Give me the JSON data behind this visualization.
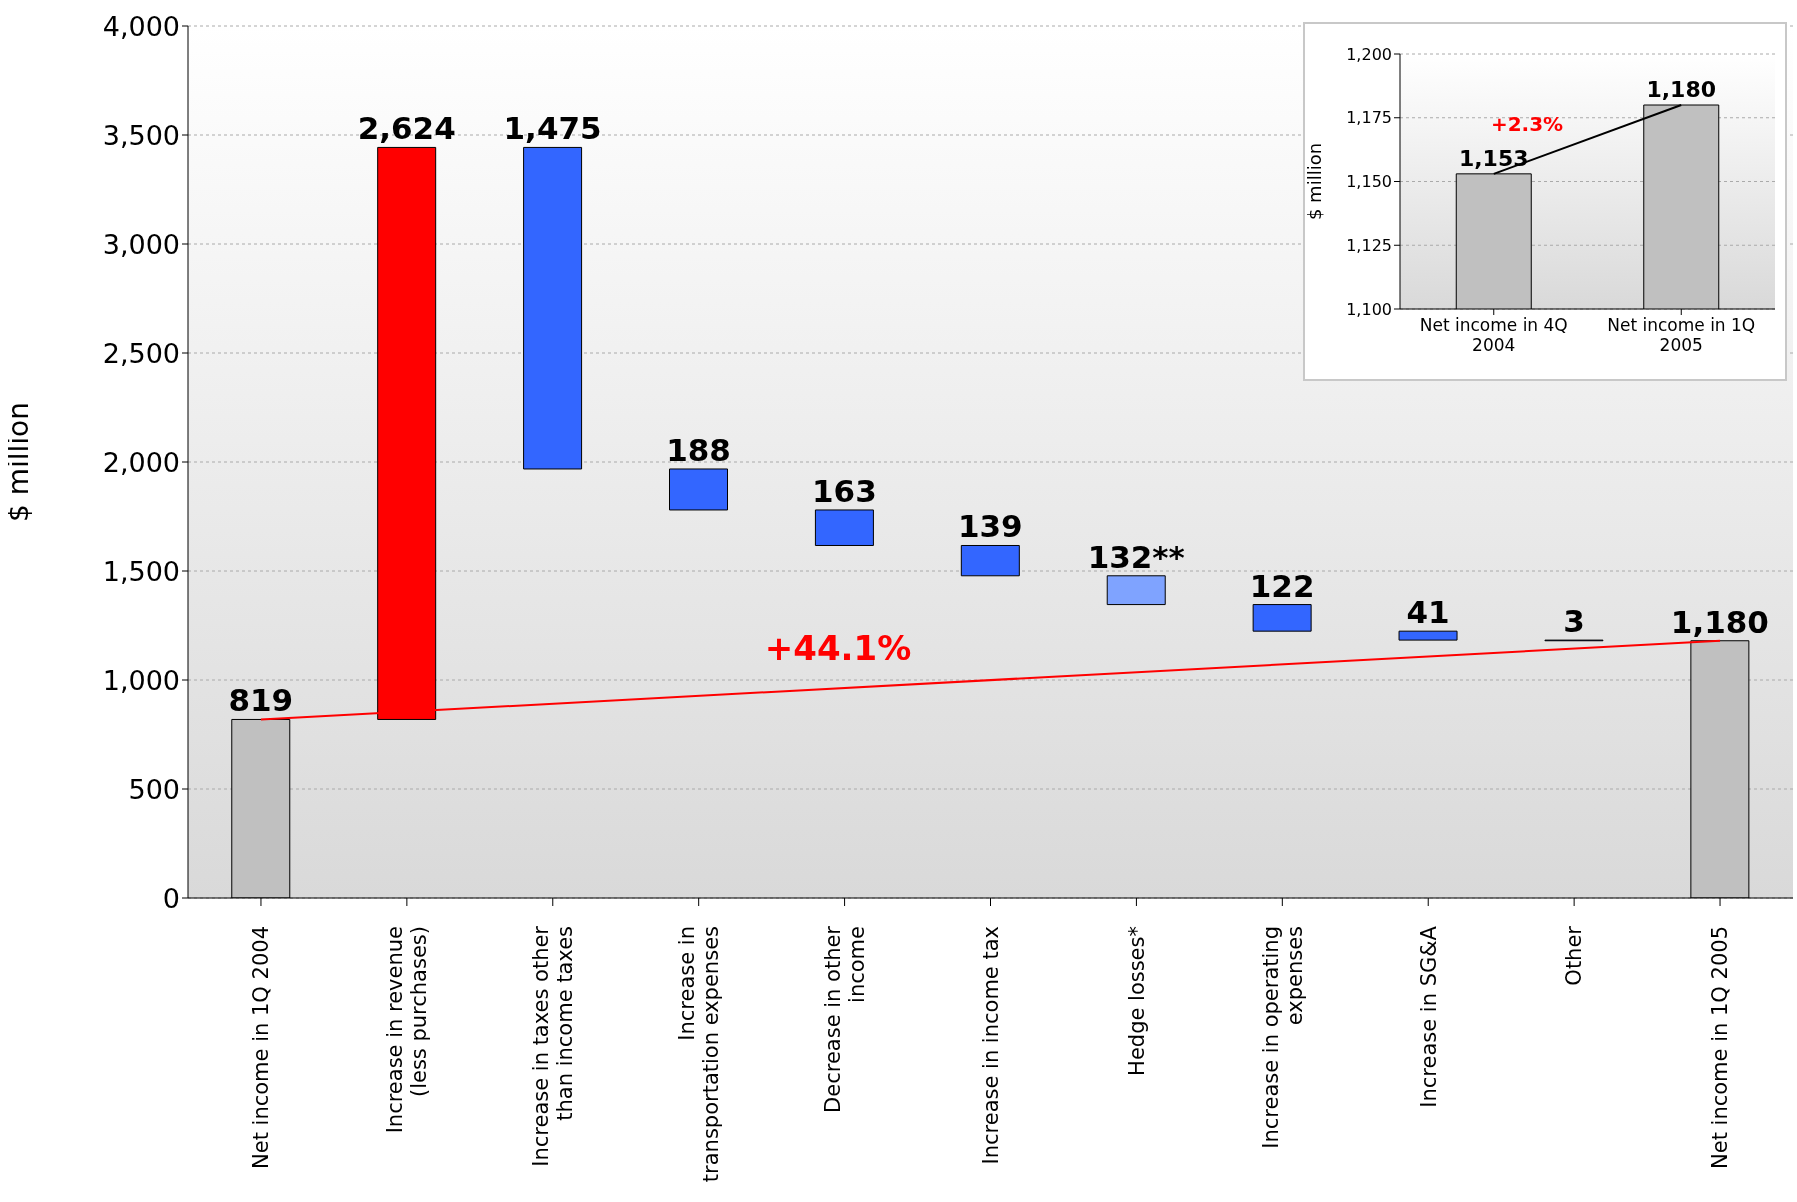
{
  "chart_data": [
    {
      "type": "bar",
      "ylabel": "$ million",
      "categories": [
        "Net income in 1Q 2004",
        "Increase in revenue (less purchases)",
        "Increase in taxes other than income taxes",
        "Increase in transportation expenses",
        "Decrease in other income",
        "Increase in income tax",
        "Hedge losses*",
        "Increase in operating expenses",
        "Increase in SG&A",
        "Other",
        "Net income in 1Q 2005"
      ],
      "series": [
        {
          "values": [
            819,
            2624,
            1475,
            188,
            163,
            139,
            132,
            122,
            41,
            3,
            1180
          ],
          "base": [
            0,
            819,
            1968,
            1780,
            1617,
            1478,
            1346,
            1224,
            1183,
            1180,
            0
          ],
          "colors": [
            "#c0c0c0",
            "#ff0000",
            "#3366ff",
            "#3366ff",
            "#3366ff",
            "#3366ff",
            "#7fa3ff",
            "#3366ff",
            "#3366ff",
            "#3366ff",
            "#c0c0c0"
          ],
          "value_labels": [
            "819",
            "2,624",
            "1,475",
            "188",
            "163",
            "139",
            "132**",
            "122",
            "41",
            "3",
            "1,180"
          ]
        },
        {
          "type": "line",
          "x": [
            "Net income in 1Q 2004",
            "Net income in 1Q 2005"
          ],
          "values": [
            819,
            1180
          ],
          "color": "#ff0000"
        }
      ],
      "ylim": [
        0,
        4000
      ],
      "yticks": [
        {
          "value": 0,
          "label": "0"
        },
        {
          "value": 500,
          "label": "500"
        },
        {
          "value": 1000,
          "label": "1,000"
        },
        {
          "value": 1500,
          "label": "1,500"
        },
        {
          "value": 2000,
          "label": "2,000"
        },
        {
          "value": 2500,
          "label": "2,500"
        },
        {
          "value": 3000,
          "label": "3,000"
        },
        {
          "value": 3500,
          "label": "3,500"
        },
        {
          "value": 4000,
          "label": "4,000"
        }
      ],
      "grid": "y",
      "legend": false,
      "annotations": [
        "+44.1%"
      ]
    },
    {
      "type": "bar",
      "ylabel": "$ million",
      "categories": [
        "Net income in 4Q 2004",
        "Net income in 1Q 2005"
      ],
      "series": [
        {
          "values": [
            1153,
            1180
          ],
          "colors": [
            "#c0c0c0",
            "#c0c0c0"
          ],
          "value_labels": [
            "1,153",
            "1,180"
          ]
        },
        {
          "type": "line",
          "x": [
            "Net income in 4Q 2004",
            "Net income in 1Q 2005"
          ],
          "values": [
            1153,
            1180
          ],
          "color": "#000000"
        }
      ],
      "ylim": [
        1100,
        1200
      ],
      "yticks": [
        {
          "value": 1100,
          "label": "1,100"
        },
        {
          "value": 1125,
          "label": "1,125"
        },
        {
          "value": 1150,
          "label": "1,150"
        },
        {
          "value": 1175,
          "label": "1,175"
        },
        {
          "value": 1200,
          "label": "1,200"
        }
      ],
      "grid": "y",
      "legend": false,
      "annotations": [
        "+2.3%"
      ]
    }
  ]
}
